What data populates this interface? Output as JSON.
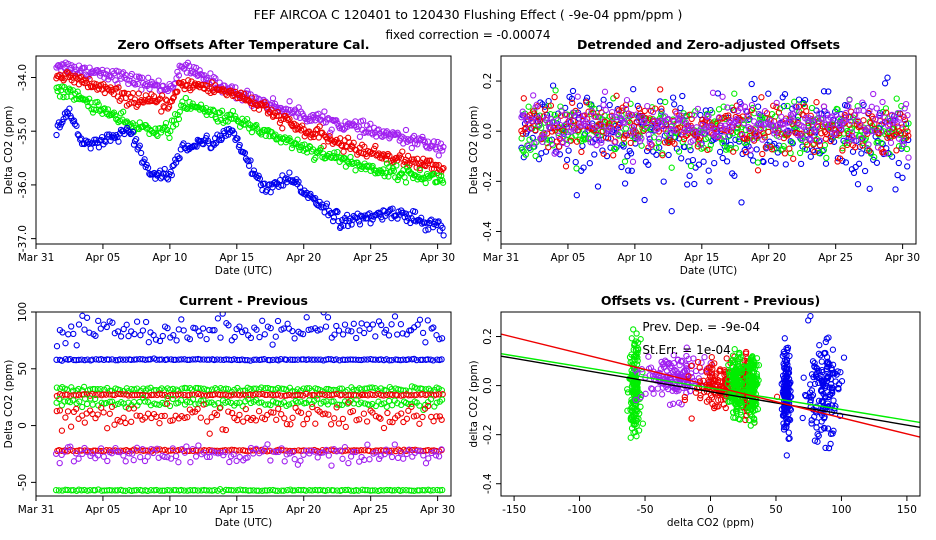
{
  "header": {
    "title": "FEF   AIRCOA C   120401 to 120430   Flushing Effect ( -9e-04 ppm/ppm )",
    "subtitle": "fixed correction = -0.00074"
  },
  "colors": {
    "blue": "#0000ee",
    "red": "#ee0000",
    "green": "#00ee00",
    "purple": "#a020f0",
    "black": "#000000"
  },
  "chart_data": [
    {
      "id": "p1",
      "type": "scatter",
      "title": "Zero Offsets After Temperature Cal.",
      "xlabel": "Date (UTC)",
      "ylabel": "Delta CO2 (ppm)",
      "xlim": [
        0,
        31
      ],
      "ylim": [
        -37.1,
        -33.6
      ],
      "xticks": [
        0,
        5,
        10,
        15,
        20,
        25,
        30
      ],
      "xtick_labels": [
        "Mar 31",
        "Apr 05",
        "Apr 10",
        "Apr 15",
        "Apr 20",
        "Apr 25",
        "Apr 30"
      ],
      "yticks": [
        -37,
        -36,
        -35,
        -34
      ],
      "ytick_labels": [
        "-37.0",
        "-36.0",
        "-35.0",
        "-34.0"
      ],
      "series": [
        {
          "name": "purple",
          "color": "purple",
          "noise": 0.06,
          "x": [
            1.5,
            3,
            5,
            8,
            10,
            11,
            15,
            20,
            25,
            30.5
          ],
          "y": [
            -33.75,
            -33.85,
            -33.9,
            -34.1,
            -34.2,
            -33.8,
            -34.3,
            -34.7,
            -35.0,
            -35.3
          ]
        },
        {
          "name": "red",
          "color": "red",
          "noise": 0.06,
          "x": [
            1.5,
            3,
            5,
            7,
            10,
            11,
            15,
            20,
            25,
            30.5
          ],
          "y": [
            -33.95,
            -34.05,
            -34.2,
            -34.4,
            -34.5,
            -34.1,
            -34.3,
            -35.0,
            -35.4,
            -35.7
          ]
        },
        {
          "name": "green",
          "color": "green",
          "noise": 0.06,
          "x": [
            1.5,
            3,
            5,
            7,
            10,
            11,
            15,
            20,
            25,
            30.5
          ],
          "y": [
            -34.2,
            -34.35,
            -34.6,
            -34.9,
            -35.0,
            -34.5,
            -34.8,
            -35.3,
            -35.7,
            -35.9
          ]
        },
        {
          "name": "blue",
          "color": "blue",
          "noise": 0.06,
          "x": [
            1.5,
            2.5,
            3.5,
            5,
            7,
            8.5,
            10,
            11,
            13,
            14.5,
            15.5,
            17,
            19,
            21,
            23,
            25,
            27,
            29,
            30.5
          ],
          "y": [
            -35.0,
            -34.6,
            -35.3,
            -35.2,
            -35.0,
            -35.8,
            -35.8,
            -35.3,
            -35.2,
            -35.0,
            -35.4,
            -36.1,
            -35.9,
            -36.3,
            -36.7,
            -36.6,
            -36.5,
            -36.7,
            -36.8
          ]
        }
      ]
    },
    {
      "id": "p2",
      "type": "scatter",
      "title": "Detrended and Zero-adjusted Offsets",
      "xlabel": "Date (UTC)",
      "ylabel": "Delta CO2 (ppm)",
      "xlim": [
        0,
        31
      ],
      "ylim": [
        -0.45,
        0.3
      ],
      "xticks": [
        0,
        5,
        10,
        15,
        20,
        25,
        30
      ],
      "xtick_labels": [
        "Mar 31",
        "Apr 05",
        "Apr 10",
        "Apr 15",
        "Apr 20",
        "Apr 25",
        "Apr 30"
      ],
      "yticks": [
        -0.4,
        -0.2,
        0,
        0.2
      ],
      "ytick_labels": [
        "-0.4",
        "-0.2",
        "0.0",
        "0.2"
      ],
      "series": [
        {
          "name": "blue",
          "color": "blue",
          "noise": 0.09,
          "x": [
            1.5,
            30.5
          ],
          "y": [
            -0.02,
            -0.02
          ]
        },
        {
          "name": "green",
          "color": "green",
          "noise": 0.06,
          "x": [
            1.5,
            30.5
          ],
          "y": [
            0.0,
            0.0
          ]
        },
        {
          "name": "red",
          "color": "red",
          "noise": 0.05,
          "x": [
            1.5,
            30.5
          ],
          "y": [
            0.01,
            0.01
          ]
        },
        {
          "name": "purple",
          "color": "purple",
          "noise": 0.045,
          "x": [
            1.5,
            30.5
          ],
          "y": [
            0.03,
            0.03
          ]
        }
      ]
    },
    {
      "id": "p3",
      "type": "scatter",
      "title": "Current - Previous",
      "xlabel": "Date (UTC)",
      "ylabel": "Delta CO2 (ppm)",
      "xlim": [
        0,
        31
      ],
      "ylim": [
        -62,
        100
      ],
      "xticks": [
        0,
        5,
        10,
        15,
        20,
        25,
        30
      ],
      "xtick_labels": [
        "Mar 31",
        "Apr 05",
        "Apr 10",
        "Apr 15",
        "Apr 20",
        "Apr 25",
        "Apr 30"
      ],
      "yticks": [
        -50,
        0,
        50,
        100
      ],
      "ytick_labels": [
        "-50",
        "0",
        "50",
        "100"
      ],
      "series": [
        {
          "name": "blue-high",
          "color": "blue",
          "noise": 6,
          "x": [
            1.5,
            30.5
          ],
          "y": [
            84,
            84
          ]
        },
        {
          "name": "blue-mid",
          "color": "blue",
          "noise": 0.3,
          "x": [
            1.5,
            30.5
          ],
          "y": [
            58,
            58
          ]
        },
        {
          "name": "green-high",
          "color": "green",
          "noise": 1,
          "x": [
            1.5,
            30.5
          ],
          "y": [
            32,
            32
          ]
        },
        {
          "name": "red-high",
          "color": "red",
          "noise": 0.4,
          "x": [
            1.5,
            30.5
          ],
          "y": [
            27,
            27
          ]
        },
        {
          "name": "green-mid",
          "color": "green",
          "noise": 2,
          "x": [
            1.5,
            30.5
          ],
          "y": [
            20,
            20
          ]
        },
        {
          "name": "red-mid",
          "color": "red",
          "noise": 5,
          "x": [
            1.5,
            30.5
          ],
          "y": [
            8,
            8
          ]
        },
        {
          "name": "red-low",
          "color": "red",
          "noise": 0.4,
          "x": [
            1.5,
            30.5
          ],
          "y": [
            -22,
            -22
          ]
        },
        {
          "name": "purple-low",
          "color": "purple",
          "noise": 4,
          "x": [
            1.5,
            30.5
          ],
          "y": [
            -25,
            -25
          ]
        },
        {
          "name": "green-low",
          "color": "green",
          "noise": 0.3,
          "x": [
            1.5,
            30.5
          ],
          "y": [
            -57,
            -57
          ]
        }
      ]
    },
    {
      "id": "p4",
      "type": "scatter",
      "title": "Offsets vs. (Current - Previous)",
      "xlabel": "delta CO2 (ppm)",
      "ylabel": "delta CO2 (ppm)",
      "xlim": [
        -160,
        160
      ],
      "ylim": [
        -0.45,
        0.3
      ],
      "xticks": [
        -150,
        -100,
        -50,
        0,
        50,
        100,
        150
      ],
      "xtick_labels": [
        "-150",
        "-100",
        "-50",
        "0",
        "50",
        "100",
        "150"
      ],
      "yticks": [
        -0.4,
        -0.2,
        0,
        0.2
      ],
      "ytick_labels": [
        "-0.4",
        "-0.2",
        "0.0",
        "0.2"
      ],
      "annotations": [
        "Prev. Dep. =  -9e-04",
        "St.Err. =  1e-04"
      ],
      "clusters": [
        {
          "color": "green",
          "x": -58,
          "xspread": 2,
          "y": 0.0,
          "yspread": 0.09
        },
        {
          "color": "purple",
          "x": -28,
          "xspread": 12,
          "y": 0.03,
          "yspread": 0.045
        },
        {
          "color": "red",
          "x": 8,
          "xspread": 10,
          "y": 0.0,
          "yspread": 0.05
        },
        {
          "color": "red",
          "x": 27,
          "xspread": 1,
          "y": 0.0,
          "yspread": 0.05
        },
        {
          "color": "green",
          "x": 20,
          "xspread": 3,
          "y": 0.0,
          "yspread": 0.06
        },
        {
          "color": "green",
          "x": 32,
          "xspread": 2,
          "y": 0.0,
          "yspread": 0.06
        },
        {
          "color": "blue",
          "x": 58,
          "xspread": 1.5,
          "y": -0.02,
          "yspread": 0.09
        },
        {
          "color": "blue",
          "x": 85,
          "xspread": 7,
          "y": -0.02,
          "yspread": 0.1
        }
      ],
      "lines": [
        {
          "name": "fit-black",
          "color": "black",
          "x": [
            -160,
            160
          ],
          "y": [
            0.12,
            -0.17
          ]
        },
        {
          "name": "fit-green",
          "color": "green",
          "x": [
            -160,
            160
          ],
          "y": [
            0.13,
            -0.15
          ]
        },
        {
          "name": "fit-red",
          "color": "red",
          "x": [
            -160,
            160
          ],
          "y": [
            0.21,
            -0.21
          ]
        }
      ]
    }
  ]
}
